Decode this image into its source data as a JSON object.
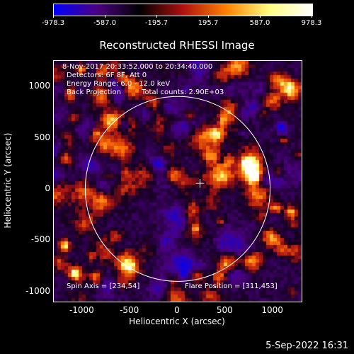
{
  "colorbar": {
    "ticks": [
      "-978.3",
      "-587.0",
      "-195.7",
      "195.7",
      "587.0",
      "978.3"
    ],
    "colors": [
      "#0000ff",
      "#4b0080",
      "#000000",
      "#b01010",
      "#ff8000",
      "#ffff80",
      "#ffffff"
    ]
  },
  "title": "Reconstructed RHESSI Image",
  "annotations": {
    "time": "8-Nov-2017 20:33:52.000 to 20:34:40.000",
    "detectors": "Detectors: 6F 8F, Att 0",
    "energy": "Energy Range: 6.0 - 12.0 keV",
    "method": "Back Projection",
    "counts": "Total counts: 2.90E+03",
    "spin_axis": "Spin Axis = [234,54]",
    "flare_position": "Flare Position = [311,453]"
  },
  "axes": {
    "xlabel": "Heliocentric X (arcsec)",
    "ylabel": "Heliocentric Y (arcsec)",
    "xticks": [
      "-1000",
      "-500",
      "0",
      "500",
      "1000"
    ],
    "yticks": [
      "1000",
      "500",
      "0",
      "-500",
      "-1000"
    ],
    "xlim": [
      -1300,
      1300
    ],
    "ylim": [
      -1100,
      1250
    ]
  },
  "marker": {
    "x": 234,
    "y": 54,
    "symbol": "+"
  },
  "solar_disk": {
    "center": [
      0,
      0
    ],
    "radius_arcsec": 970
  },
  "footer": "5-Sep-2022 16:31"
}
